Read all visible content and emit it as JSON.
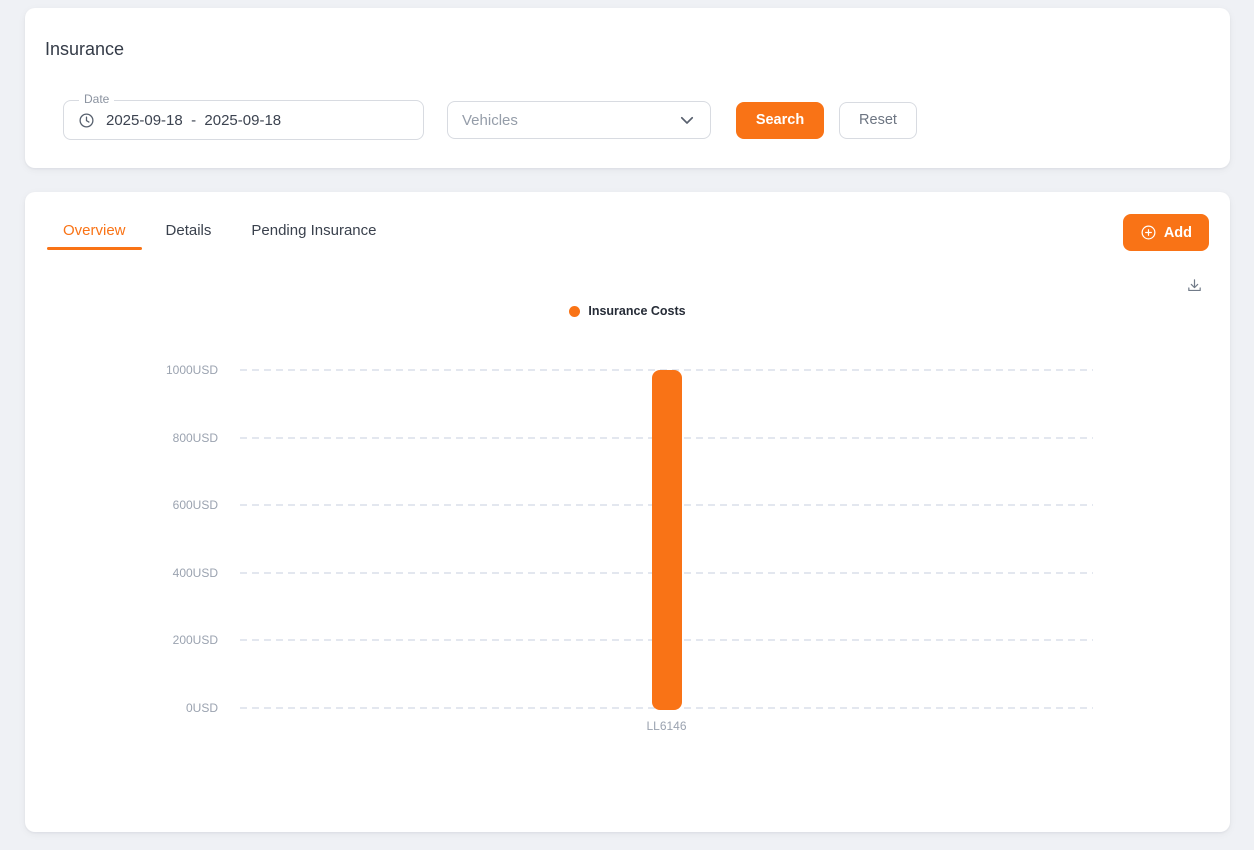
{
  "colors": {
    "accent": "#f97316",
    "page_background": "#eff1f5",
    "gridline": "#e3e7ef",
    "axis_label": "#9ba3b0"
  },
  "filter_card": {
    "title": "Insurance",
    "date_field": {
      "label": "Date",
      "value": "2025-09-18  -  2025-09-18"
    },
    "vehicle_select": {
      "placeholder": "Vehicles"
    },
    "search_label": "Search",
    "reset_label": "Reset"
  },
  "content_card": {
    "tabs": [
      {
        "label": "Overview",
        "active": true
      },
      {
        "label": "Details",
        "active": false
      },
      {
        "label": "Pending Insurance",
        "active": false
      }
    ],
    "add_button_label": "Add",
    "icons": {
      "add": "plus-circle-icon",
      "download": "download-icon",
      "date": "clock-icon",
      "select": "chevron-down-icon"
    }
  },
  "chart_data": {
    "type": "bar",
    "title": "",
    "legend": [
      {
        "label": "Insurance Costs",
        "color": "#f97316"
      }
    ],
    "legend_position": "top-center",
    "categories": [
      "LL6146"
    ],
    "series": [
      {
        "name": "Insurance Costs",
        "values": [
          1000
        ],
        "color": "#f97316"
      }
    ],
    "ylim": [
      0,
      1000
    ],
    "yticks": [
      0,
      200,
      400,
      600,
      800,
      1000
    ],
    "ytick_suffix": "USD",
    "grid": "horizontal-dashed"
  }
}
